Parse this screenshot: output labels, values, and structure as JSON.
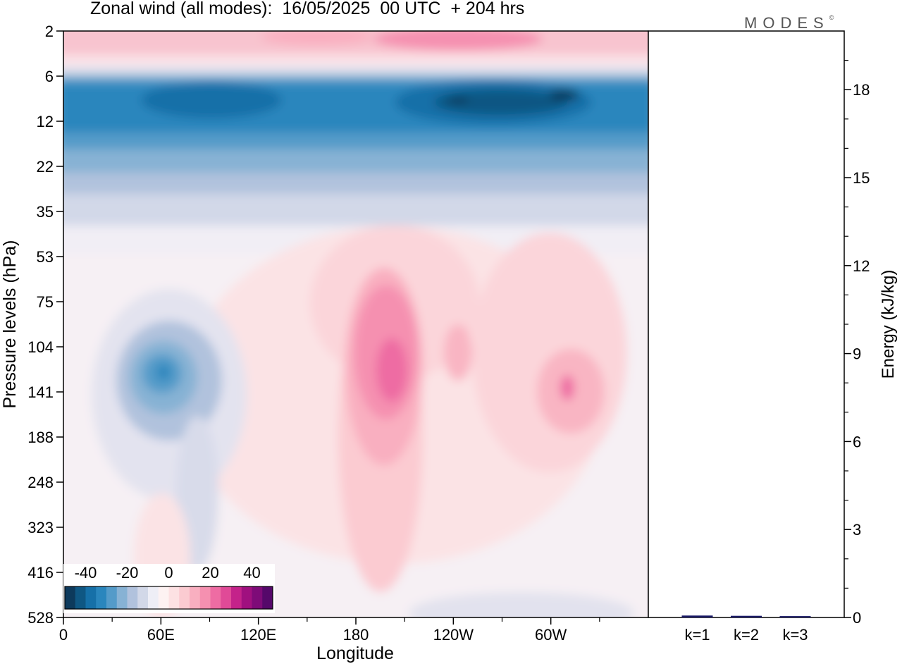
{
  "title": "Zonal wind (all modes):  16/05/2025  00 UTC  + 204 hrs",
  "logo": {
    "text": "MODES",
    "mark": "©"
  },
  "chart_data": [
    {
      "type": "heatmap",
      "title": "Zonal wind (all modes):  16/05/2025  00 UTC  + 204 hrs",
      "xlabel": "Longitude",
      "ylabel": "Pressure levels (hPa)",
      "x_ticks": [
        "0",
        "60E",
        "120E",
        "180",
        "120W",
        "60W"
      ],
      "x_tick_values": [
        0,
        60,
        120,
        180,
        240,
        300
      ],
      "xlim": [
        0,
        360
      ],
      "y_ticks": [
        "2",
        "6",
        "12",
        "22",
        "35",
        "53",
        "75",
        "104",
        "141",
        "188",
        "248",
        "323",
        "416",
        "528"
      ],
      "colorbar": {
        "labels": [
          "-40",
          "-20",
          "0",
          "20",
          "40"
        ],
        "label_values": [
          -40,
          -20,
          0,
          20,
          40
        ],
        "range": [
          -50,
          50
        ],
        "colors": [
          "#0d3a5c",
          "#0f5783",
          "#1670a8",
          "#2a86bd",
          "#549bc9",
          "#87b2d4",
          "#b1c2dd",
          "#d2d8e8",
          "#eeeef6",
          "#fdf2f2",
          "#fde1e3",
          "#fbcbd1",
          "#f9afc0",
          "#f590b0",
          "#ee6ca3",
          "#e04a97",
          "#c4228a",
          "#a0107f",
          "#7e0b78",
          "#55086a"
        ]
      },
      "grid": false,
      "field_features": [
        {
          "name": "upper easterly jet",
          "longitude_range": [
            0,
            360
          ],
          "pressure_range": [
            6,
            30
          ],
          "value": -30
        },
        {
          "name": "easterly core",
          "longitude_range": [
            245,
            320
          ],
          "pressure_range": [
            7,
            12
          ],
          "value": -45
        },
        {
          "name": "westerly band",
          "longitude_range": [
            0,
            360
          ],
          "pressure_range": [
            2,
            4
          ],
          "value": 15
        },
        {
          "name": "easterly cell",
          "longitude_range": [
            35,
            95
          ],
          "pressure_range": [
            85,
            175
          ],
          "value": -25
        },
        {
          "name": "westerly maximum",
          "longitude_range": [
            175,
            215
          ],
          "pressure_range": [
            70,
            260
          ],
          "value": 35
        },
        {
          "name": "westerly cell",
          "longitude_range": [
            290,
            335
          ],
          "pressure_range": [
            95,
            190
          ],
          "value": 18
        }
      ]
    },
    {
      "type": "bar",
      "ylabel": "Energy (kJ/kg)",
      "categories": [
        "k=1",
        "k=2",
        "k=3"
      ],
      "values": [
        0.03,
        0.02,
        0.01
      ],
      "ylim": [
        0,
        20
      ],
      "y_ticks": [
        0,
        3,
        6,
        9,
        12,
        15,
        18
      ],
      "bar_color": "#1a1a66"
    }
  ]
}
